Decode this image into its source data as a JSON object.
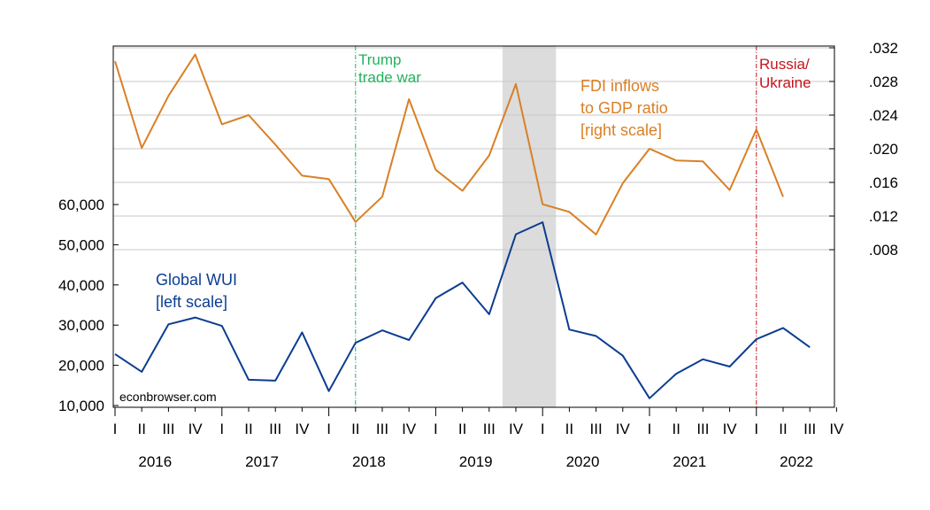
{
  "chart_data": {
    "type": "line",
    "x_periods": [
      "2016Q1",
      "2016Q2",
      "2016Q3",
      "2016Q4",
      "2017Q1",
      "2017Q2",
      "2017Q3",
      "2017Q4",
      "2018Q1",
      "2018Q2",
      "2018Q3",
      "2018Q4",
      "2019Q1",
      "2019Q2",
      "2019Q3",
      "2019Q4",
      "2020Q1",
      "2020Q2",
      "2020Q3",
      "2020Q4",
      "2021Q1",
      "2021Q2",
      "2021Q3",
      "2021Q4",
      "2022Q1",
      "2022Q2",
      "2022Q3",
      "2022Q4"
    ],
    "quarter_labels": [
      "I",
      "II",
      "III",
      "IV",
      "I",
      "II",
      "III",
      "IV",
      "I",
      "II",
      "III",
      "IV",
      "I",
      "II",
      "III",
      "IV",
      "I",
      "II",
      "III",
      "IV",
      "I",
      "II",
      "III",
      "IV",
      "I",
      "II",
      "III",
      "IV"
    ],
    "year_labels": [
      "2016",
      "2017",
      "2018",
      "2019",
      "2020",
      "2021",
      "2022"
    ],
    "left_axis": {
      "ticks": [
        10000,
        20000,
        30000,
        40000,
        50000,
        60000
      ],
      "tick_labels": [
        "10,000",
        "20,000",
        "30,000",
        "40,000",
        "50,000",
        "60,000"
      ]
    },
    "right_axis": {
      "ticks": [
        0.008,
        0.012,
        0.016,
        0.02,
        0.024,
        0.028,
        0.032
      ],
      "tick_labels": [
        ".008",
        ".012",
        ".016",
        ".020",
        ".024",
        ".028",
        ".032"
      ]
    },
    "series": [
      {
        "name": "Global WUI",
        "axis": "left",
        "color": "#0b3d91",
        "x": [
          0,
          1,
          2,
          3,
          4,
          5,
          6,
          7,
          8,
          9,
          10,
          11,
          12,
          13,
          14,
          15,
          16,
          17,
          18,
          19,
          20,
          21,
          22,
          23,
          24,
          25,
          26
        ],
        "values": [
          22800,
          18400,
          30200,
          31900,
          29800,
          16400,
          16200,
          28200,
          13600,
          25600,
          28700,
          26300,
          36700,
          40600,
          32700,
          52600,
          55600,
          28900,
          27300,
          22400,
          11800,
          17900,
          21500,
          19700,
          26500,
          29300,
          24500
        ]
      },
      {
        "name": "FDI inflows to GDP ratio",
        "axis": "right",
        "color": "#d98026",
        "x": [
          0,
          1,
          2,
          3,
          4,
          5,
          6,
          7,
          8,
          9,
          10,
          11,
          12,
          13,
          14,
          15,
          16,
          17,
          18,
          19,
          20,
          21,
          22,
          23,
          24,
          25
        ],
        "values": [
          0.0304,
          0.0201,
          0.0263,
          0.0312,
          0.0229,
          0.024,
          0.0205,
          0.0168,
          0.0164,
          0.0113,
          0.0143,
          0.0259,
          0.0175,
          0.015,
          0.0192,
          0.0277,
          0.0134,
          0.0125,
          0.0098,
          0.0159,
          0.02,
          0.0186,
          0.0185,
          0.0151,
          0.0223,
          0.0143
        ]
      }
    ],
    "shaded_region": {
      "start_period": "2019Q4",
      "end_period": "2020Q2",
      "color": "#dcdcdc"
    },
    "event_lines": [
      {
        "period": "2018Q2",
        "color": "#22b35a",
        "label_lines": [
          "Trump",
          "trade war"
        ]
      },
      {
        "period": "2022Q1",
        "color": "#c4161c",
        "label_lines": [
          "Russia/",
          "Ukraine"
        ]
      }
    ],
    "annotations": {
      "wui_label_lines": [
        "Global WUI",
        "[left scale]"
      ],
      "fdi_label_lines": [
        "FDI inflows",
        "to GDP ratio",
        "[right scale]"
      ]
    },
    "grid": "horizontal",
    "watermark": "econbrowser.com"
  },
  "colors": {
    "wui": "#0b3d91",
    "fdi": "#d98026",
    "recession": "#dcdcdc",
    "trump": "#22b35a",
    "russia": "#c4161c",
    "grid": "#c8c8c8"
  }
}
